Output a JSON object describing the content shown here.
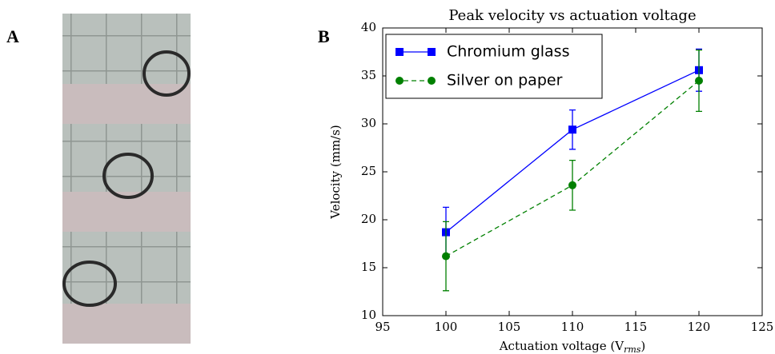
{
  "panel_labels": [
    "A",
    "B"
  ],
  "chart_data": {
    "type": "line",
    "title": "Peak velocity vs actuation voltage",
    "x_label": [
      "Actuation voltage (V",
      "rms",
      ")"
    ],
    "y_label": "Velocity (mm/s)",
    "xlim": [
      95,
      125
    ],
    "xticks": [
      95,
      100,
      105,
      110,
      115,
      120,
      125
    ],
    "ylim": [
      10,
      40
    ],
    "yticks": [
      10,
      15,
      20,
      25,
      30,
      35,
      40
    ],
    "legend": "upper left",
    "x": [
      100,
      110,
      120
    ],
    "series": [
      {
        "name": "Chromium glass",
        "color": "#0000ff",
        "marker": "square",
        "linestyle": "solid",
        "values": [
          18.7,
          29.4,
          35.6
        ],
        "errors": [
          2.6,
          2.05,
          2.2
        ]
      },
      {
        "name": "Silver on paper",
        "color": "#008000",
        "marker": "circle",
        "linestyle": "dashed",
        "values": [
          16.2,
          23.6,
          34.5
        ],
        "errors": [
          3.6,
          2.6,
          3.2
        ]
      }
    ]
  }
}
